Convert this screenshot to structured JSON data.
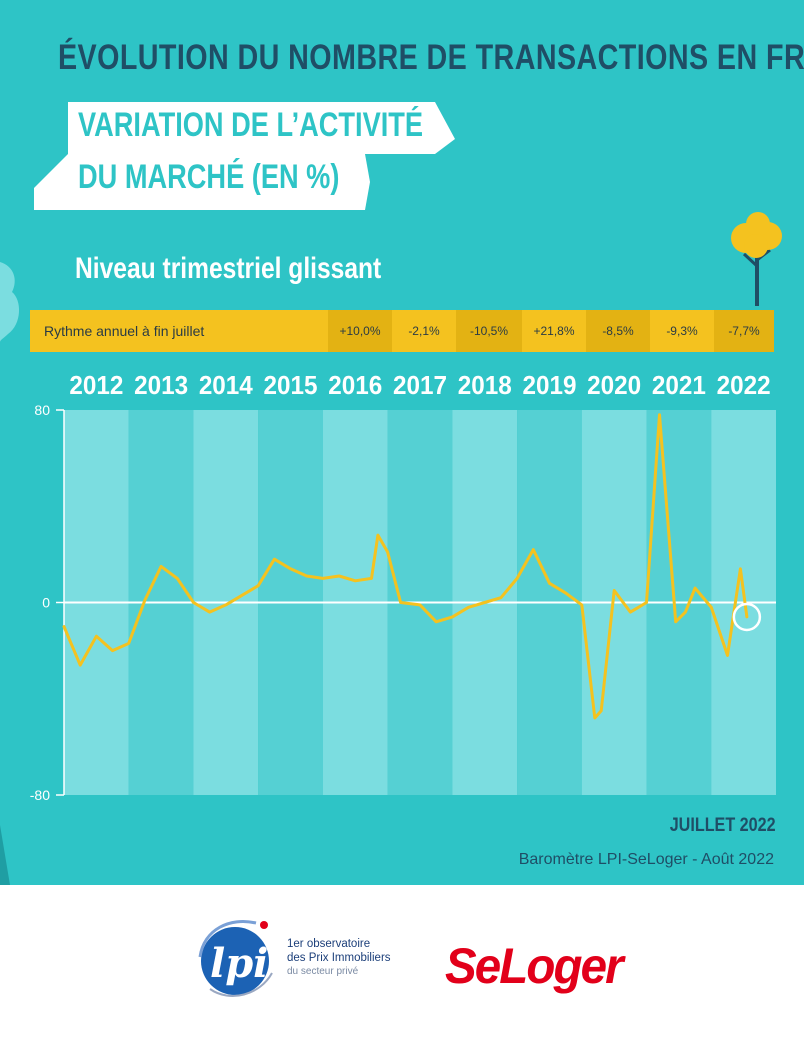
{
  "header": {
    "title": "ÉVOLUTION DU NOMBRE DE TRANSACTIONS EN FRANCE",
    "ribbon_line1": "VARIATION DE L’ACTIVITÉ",
    "ribbon_line2": "DU MARCHÉ (EN %)",
    "subtitle": "Niveau trimestriel glissant"
  },
  "rates": {
    "label": "Rythme annuel à fin juillet",
    "values": [
      "+10,0%",
      "-2,1%",
      "-10,5%",
      "+21,8%",
      "-8,5%",
      "-9,3%",
      "-7,7%"
    ]
  },
  "chart_data": {
    "type": "line",
    "x_tick_labels": [
      "2012",
      "2013",
      "2014",
      "2015",
      "2016",
      "2017",
      "2018",
      "2019",
      "2020",
      "2021",
      "2022"
    ],
    "ylim": [
      -80,
      80
    ],
    "y_tick_labels": [
      "80",
      "0",
      "-80"
    ],
    "grid": false,
    "baseline": 0,
    "x": [
      2012.0,
      2012.25,
      2012.5,
      2012.75,
      2013.0,
      2013.25,
      2013.5,
      2013.75,
      2014.0,
      2014.25,
      2014.5,
      2014.75,
      2015.0,
      2015.25,
      2015.5,
      2015.75,
      2016.0,
      2016.25,
      2016.5,
      2016.75,
      2016.85,
      2017.0,
      2017.2,
      2017.5,
      2017.75,
      2018.0,
      2018.25,
      2018.5,
      2018.75,
      2019.0,
      2019.25,
      2019.5,
      2019.75,
      2020.0,
      2020.2,
      2020.3,
      2020.5,
      2020.75,
      2021.0,
      2021.2,
      2021.45,
      2021.6,
      2021.75,
      2022.0,
      2022.25,
      2022.45,
      2022.55
    ],
    "y": [
      -10,
      -26,
      -14,
      -20,
      -17,
      1,
      15,
      10,
      0,
      -4,
      -1,
      3,
      7,
      18,
      14,
      11,
      10,
      11,
      9,
      10,
      28,
      21,
      0,
      -1,
      -8,
      -6,
      -2,
      0,
      2,
      10,
      22,
      8,
      4,
      -1,
      -48,
      -45,
      5,
      -4,
      0,
      78,
      -8,
      -4,
      6,
      -2,
      -22,
      14,
      -6
    ],
    "marker_x": 2022.55,
    "marker_y": -6
  },
  "footer": {
    "date": "JUILLET 2022",
    "source": "Baromètre LPI-SeLoger - Août 2022",
    "lpi_mark": "lpi",
    "lpi_line1": "1er observatoire",
    "lpi_line2": "des Prix Immobiliers",
    "lpi_line3": "du secteur privé",
    "seloger": "SeLoger"
  },
  "colors": {
    "background": "#2ec4c6",
    "band_light": "#7bdde0",
    "band_dark": "#55d0d3",
    "line": "#f4c21f",
    "title": "#1f4e66",
    "seloger": "#e2001a"
  }
}
